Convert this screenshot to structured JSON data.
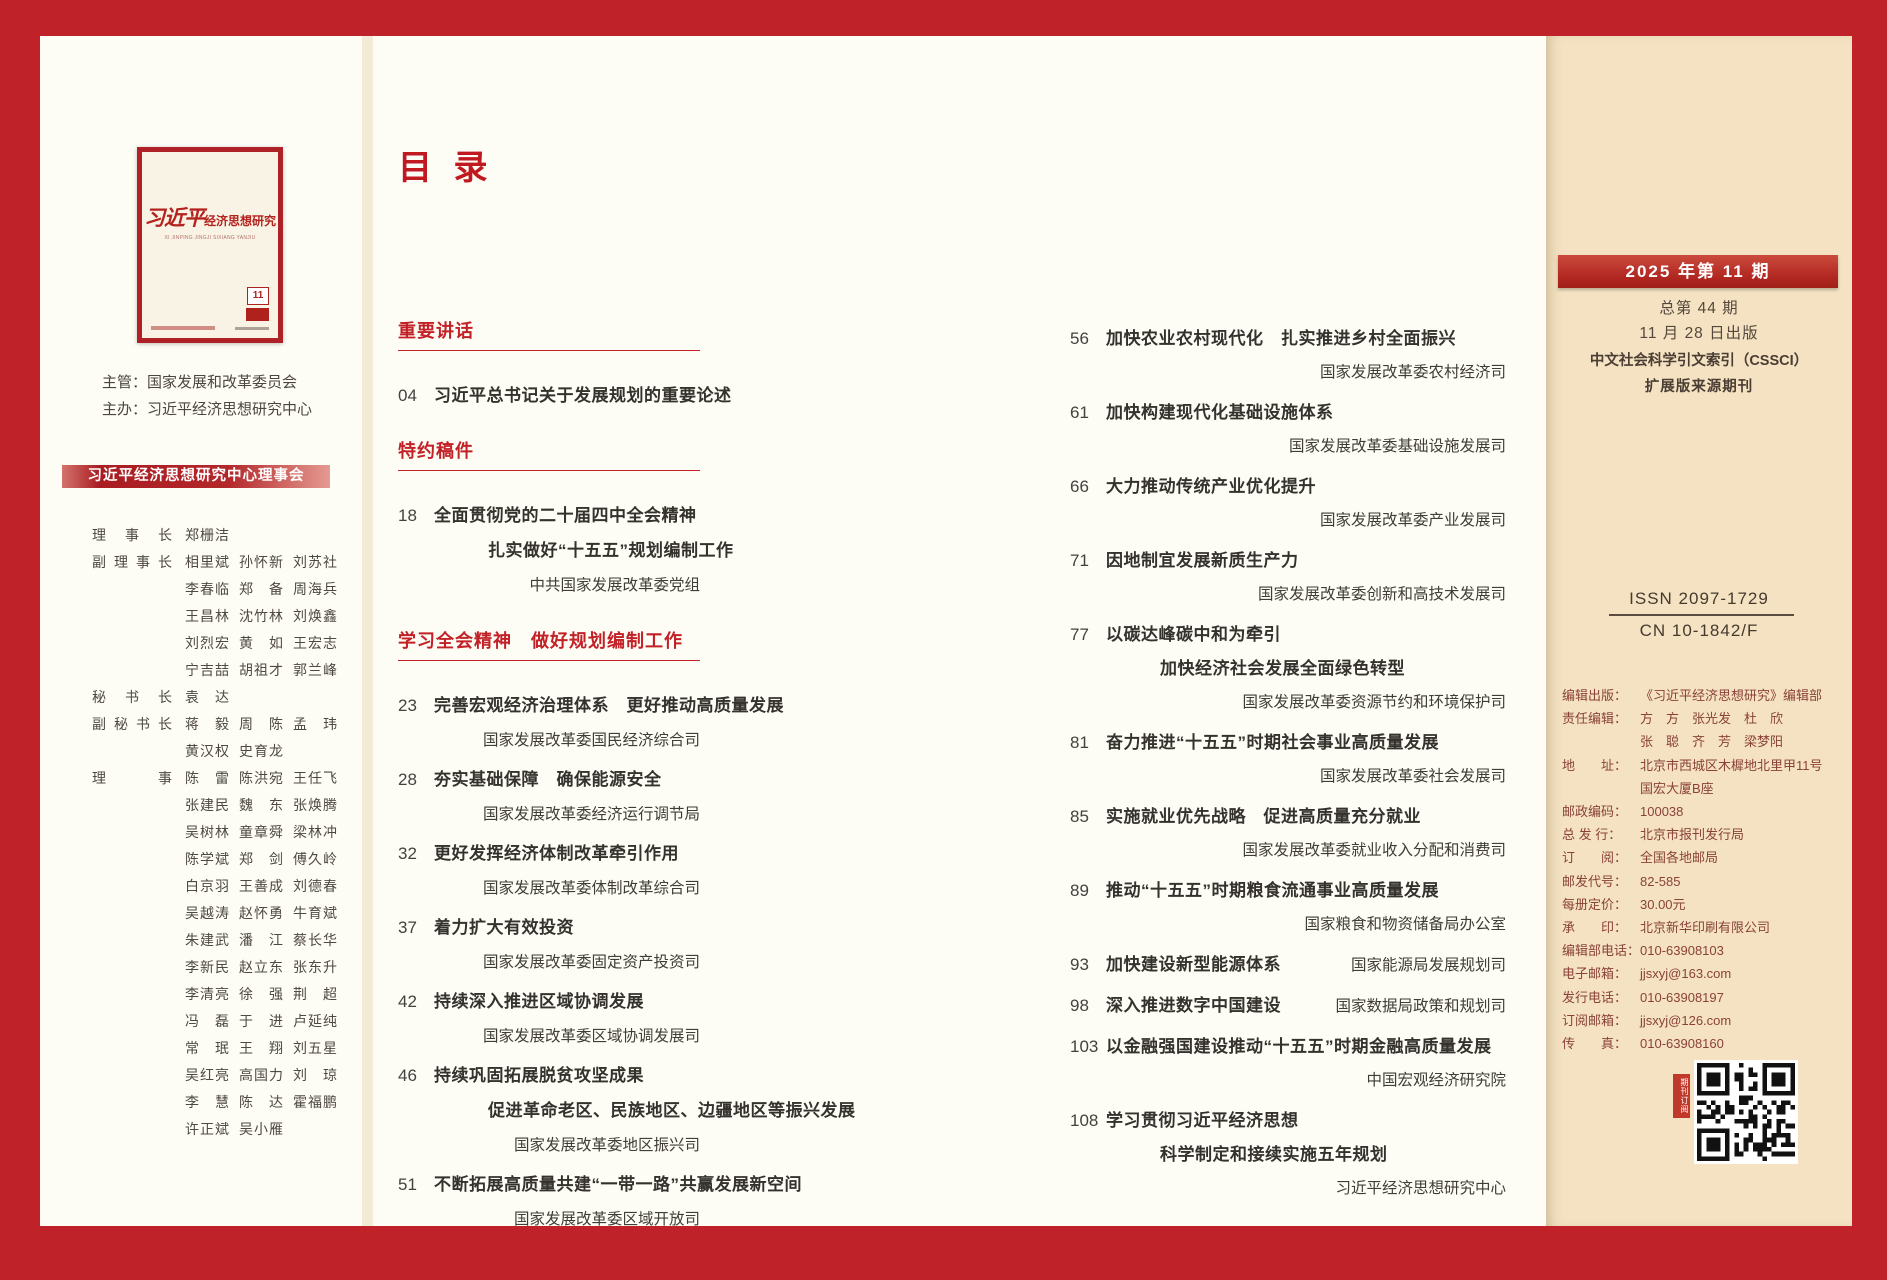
{
  "left": {
    "cover": {
      "title_script": "习近平",
      "title_rest": "经济思想研究",
      "subtitle": "XI JINPING JINGJI SIXIANG YANJIU",
      "issue_no": "11"
    },
    "supervisor": "主管：国家发展和改革委员会",
    "organizer": "主办：习近平经济思想研究中心",
    "council_title": "习近平经济思想研究中心理事会",
    "council_rows": [
      {
        "label": "理事长",
        "names": [
          "郑栅洁"
        ]
      },
      {
        "label": "副理事长",
        "names": [
          "相里斌",
          "孙怀新",
          "刘苏社"
        ]
      },
      {
        "label": "",
        "names": [
          "李春临",
          "郑备",
          "周海兵"
        ]
      },
      {
        "label": "",
        "names": [
          "王昌林",
          "沈竹林",
          "刘焕鑫"
        ]
      },
      {
        "label": "",
        "names": [
          "刘烈宏",
          "黄如",
          "王宏志"
        ]
      },
      {
        "label": "",
        "names": [
          "宁吉喆",
          "胡祖才",
          "郭兰峰"
        ]
      },
      {
        "label": "秘书长",
        "names": [
          "袁达"
        ]
      },
      {
        "label": "副秘书长",
        "names": [
          "蒋毅",
          "周陈",
          "孟玮"
        ]
      },
      {
        "label": "",
        "names": [
          "黄汉权",
          "史育龙"
        ]
      },
      {
        "label": "理事",
        "names": [
          "陈雷",
          "陈洪宛",
          "王任飞"
        ]
      },
      {
        "label": "",
        "names": [
          "张建民",
          "魏东",
          "张焕腾"
        ]
      },
      {
        "label": "",
        "names": [
          "吴树林",
          "童章舜",
          "梁林冲"
        ]
      },
      {
        "label": "",
        "names": [
          "陈学斌",
          "郑剑",
          "傅久岭"
        ]
      },
      {
        "label": "",
        "names": [
          "白京羽",
          "王善成",
          "刘德春"
        ]
      },
      {
        "label": "",
        "names": [
          "吴越涛",
          "赵怀勇",
          "牛育斌"
        ]
      },
      {
        "label": "",
        "names": [
          "朱建武",
          "潘江",
          "蔡长华"
        ]
      },
      {
        "label": "",
        "names": [
          "李新民",
          "赵立东",
          "张东升"
        ]
      },
      {
        "label": "",
        "names": [
          "李清亮",
          "徐强",
          "荆超"
        ]
      },
      {
        "label": "",
        "names": [
          "冯磊",
          "于进",
          "卢延纯"
        ]
      },
      {
        "label": "",
        "names": [
          "常珉",
          "王翔",
          "刘五星"
        ]
      },
      {
        "label": "",
        "names": [
          "吴红亮",
          "高国力",
          "刘琼"
        ]
      },
      {
        "label": "",
        "names": [
          "李慧",
          "陈达",
          "霍福鹏"
        ]
      },
      {
        "label": "",
        "names": [
          "许正斌",
          "吴小雁"
        ]
      }
    ]
  },
  "toc": {
    "title": "目 录",
    "sections": [
      {
        "header": "重要讲话",
        "entries": [
          {
            "page": "04",
            "title": "习近平总书记关于发展规划的重要论述"
          }
        ]
      },
      {
        "header": "特约稿件",
        "entries": [
          {
            "page": "18",
            "title": "全面贯彻党的二十届四中全会精神",
            "title2": "扎实做好“十五五”规划编制工作",
            "byline": "中共国家发展改革委党组"
          }
        ]
      },
      {
        "header": "学习全会精神　做好规划编制工作",
        "entries": [
          {
            "page": "23",
            "title": "完善宏观经济治理体系　更好推动高质量发展",
            "byline": "国家发展改革委国民经济综合司"
          },
          {
            "page": "28",
            "title": "夯实基础保障　确保能源安全",
            "byline": "国家发展改革委经济运行调节局"
          },
          {
            "page": "32",
            "title": "更好发挥经济体制改革牵引作用",
            "byline": "国家发展改革委体制改革综合司"
          },
          {
            "page": "37",
            "title": "着力扩大有效投资",
            "byline": "国家发展改革委固定资产投资司"
          },
          {
            "page": "42",
            "title": "持续深入推进区域协调发展",
            "byline": "国家发展改革委区域协调发展司"
          },
          {
            "page": "46",
            "title": "持续巩固拓展脱贫攻坚成果",
            "title2": "促进革命老区、民族地区、边疆地区等振兴发展",
            "byline": "国家发展改革委地区振兴司"
          },
          {
            "page": "51",
            "title": "不断拓展高质量共建“一带一路”共赢发展新空间",
            "byline": "国家发展改革委区域开放司"
          }
        ]
      }
    ],
    "column2": [
      {
        "page": "56",
        "title": "加快农业农村现代化　扎实推进乡村全面振兴",
        "byline": "国家发展改革委农村经济司"
      },
      {
        "page": "61",
        "title": "加快构建现代化基础设施体系",
        "byline": "国家发展改革委基础设施发展司"
      },
      {
        "page": "66",
        "title": "大力推动传统产业优化提升",
        "byline": "国家发展改革委产业发展司"
      },
      {
        "page": "71",
        "title": "因地制宜发展新质生产力",
        "byline": "国家发展改革委创新和高技术发展司"
      },
      {
        "page": "77",
        "title": "以碳达峰碳中和为牵引",
        "title2": "加快经济社会发展全面绿色转型",
        "byline": "国家发展改革委资源节约和环境保护司"
      },
      {
        "page": "81",
        "title": "奋力推进“十五五”时期社会事业高质量发展",
        "byline": "国家发展改革委社会发展司"
      },
      {
        "page": "85",
        "title": "实施就业优先战略　促进高质量充分就业",
        "byline": "国家发展改革委就业收入分配和消费司"
      },
      {
        "page": "89",
        "title": "推动“十五五”时期粮食流通事业高质量发展",
        "byline": "国家粮食和物资储备局办公室"
      },
      {
        "page": "93",
        "title": "加快建设新型能源体系",
        "byline_inline": "国家能源局发展规划司"
      },
      {
        "page": "98",
        "title": "深入推进数字中国建设",
        "byline_inline": "国家数据局政策和规划司"
      },
      {
        "page": "103",
        "title": "以金融强国建设推动“十五五”时期金融高质量发展",
        "byline": "中国宏观经济研究院"
      },
      {
        "page": "108",
        "title": "学习贯彻习近平经济思想",
        "title2": "科学制定和接续实施五年规划",
        "byline": "习近平经济思想研究中心"
      }
    ]
  },
  "right": {
    "issue_line": "2025 年第 11 期",
    "total_issue": "总第 44 期",
    "pub_date": "11 月 28 日出版",
    "index_line1": "中文社会科学引文索引（CSSCI）",
    "index_line2": "扩展版来源期刊",
    "issn": "ISSN 2097-1729",
    "cn": "CN 10-1842/F",
    "publisher_lines": [
      {
        "label": "编辑出版：",
        "value": "《习近平经济思想研究》编辑部"
      },
      {
        "label": "责任编辑：",
        "value": "方　方　张光发　杜　欣"
      },
      {
        "label": "",
        "value": "张　聪　齐　芳　梁梦阳"
      },
      {
        "label": "地　　址：",
        "value": "北京市西城区木樨地北里甲11号"
      },
      {
        "label": "",
        "value": "国宏大厦B座"
      },
      {
        "label": "邮政编码：",
        "value": "100038"
      },
      {
        "label": "总 发 行：",
        "value": "北京市报刊发行局"
      },
      {
        "label": "订　　阅：",
        "value": "全国各地邮局"
      },
      {
        "label": "邮发代号：",
        "value": "82-585"
      },
      {
        "label": "每册定价：",
        "value": "30.00元"
      },
      {
        "label": "承　　印：",
        "value": "北京新华印刷有限公司"
      },
      {
        "label": "编辑部电话：",
        "value": "010-63908103"
      },
      {
        "label": "电子邮箱：",
        "value": "jjsxyj@163.com"
      },
      {
        "label": "发行电话：",
        "value": "010-63908197"
      },
      {
        "label": "订阅邮箱：",
        "value": "jjsxyj@126.com"
      },
      {
        "label": "传　　真：",
        "value": "010-63908160"
      }
    ],
    "qr_label": "期刊订阅"
  }
}
